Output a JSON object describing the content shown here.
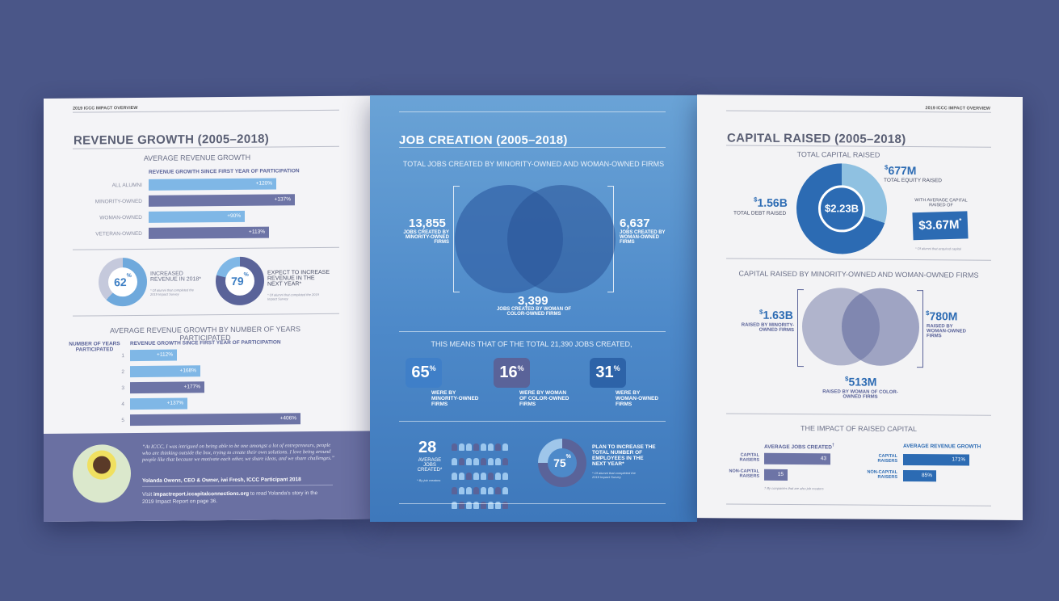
{
  "left": {
    "running_head": "2019 ICCC IMPACT OVERVIEW",
    "title": "REVENUE GROWTH (2005–2018)",
    "avg_title": "AVERAGE REVENUE GROWTH",
    "since_label": "REVENUE GROWTH SINCE FIRST YEAR OF PARTICIPATION",
    "rows": [
      {
        "label": "ALL ALUMNI",
        "value": "+120%",
        "pct": 120,
        "style": "light"
      },
      {
        "label": "MINORITY-OWNED",
        "value": "+137%",
        "pct": 137,
        "style": "dark"
      },
      {
        "label": "WOMAN-OWNED",
        "value": "+90%",
        "pct": 90,
        "style": "light"
      },
      {
        "label": "VETERAN-OWNED",
        "value": "+113%",
        "pct": 113,
        "style": "dark"
      }
    ],
    "donut1": {
      "value": "62",
      "unit": "%",
      "pct": 62,
      "label": "INCREASED REVENUE IN 2018*",
      "note": "* Of alumni that completed the 2019 Impact Survey"
    },
    "donut2": {
      "value": "79",
      "unit": "%",
      "pct": 79,
      "label": "EXPECT TO INCREASE REVENUE IN THE NEXT YEAR*",
      "note": "* Of alumni that completed the 2019 Impact Survey"
    },
    "years_title": "AVERAGE REVENUE GROWTH BY NUMBER OF YEARS PARTICIPATED",
    "years_col": "NUMBER OF YEARS PARTICIPATED",
    "years_since": "REVENUE GROWTH SINCE FIRST YEAR OF PARTICIPATION",
    "years": [
      {
        "n": "1",
        "value": "+112%",
        "pct": 112,
        "style": "light"
      },
      {
        "n": "2",
        "value": "+168%",
        "pct": 168,
        "style": "light"
      },
      {
        "n": "3",
        "value": "+177%",
        "pct": 177,
        "style": "dark"
      },
      {
        "n": "4",
        "value": "+137%",
        "pct": 137,
        "style": "light"
      },
      {
        "n": "5",
        "value": "+406%",
        "pct": 406,
        "style": "dark"
      }
    ],
    "quote": "“At ICCC, I was intrigued on being able to be one amongst a lot of entrepreneurs, people who are thinking outside the box, trying to create their own solutions. I love being around people like that because we motivate each other, we share ideas, and we share challenges.”",
    "quote_author": "Yolanda Owens, CEO & Owner, iwi Fresh, ICCC Participant 2018",
    "visit_prefix": "Visit ",
    "visit_link": "impactreport.iccapitalconnections.org",
    "visit_suffix": " to read Yolanda’s story in the 2019 Impact Report on page 36."
  },
  "middle": {
    "title": "JOB CREATION (2005–2018)",
    "total_title": "TOTAL JOBS CREATED BY MINORITY-OWNED AND WOMAN-OWNED FIRMS",
    "minority": {
      "value": "13,855",
      "label": "JOBS CREATED BY MINORITY-OWNED FIRMS"
    },
    "woman": {
      "value": "6,637",
      "label": "JOBS CREATED BY WOMAN-OWNED FIRMS"
    },
    "overlap": {
      "value": "3,399",
      "label": "JOBS CREATED BY WOMAN OF COLOR-OWNED FIRMS"
    },
    "means_title": "THIS MEANS THAT OF THE TOTAL 21,390 JOBS CREATED,",
    "c1": {
      "value": "65",
      "unit": "%",
      "label": "WERE BY MINORITY-OWNED FIRMS"
    },
    "c2": {
      "value": "16",
      "unit": "%",
      "label": "WERE BY WOMAN OF COLOR-OWNED FIRMS"
    },
    "c3": {
      "value": "31",
      "unit": "%",
      "label": "WERE BY WOMAN-OWNED FIRMS"
    },
    "avg_jobs": {
      "value": "28",
      "label": "AVERAGE JOBS CREATED*",
      "note": "* By job creators"
    },
    "plan": {
      "value": "75",
      "unit": "%",
      "pct": 75,
      "label": "PLAN TO INCREASE THE TOTAL NUMBER OF EMPLOYEES IN THE NEXT YEAR*",
      "note": "* Of alumni that completed the 2019 Impact Survey"
    }
  },
  "right": {
    "running_head": "2019 ICCC IMPACT OVERVIEW",
    "title": "CAPITAL RAISED (2005–2018)",
    "total_title": "TOTAL CAPITAL RAISED",
    "total": "$2.23B",
    "debt": {
      "value": "1.56B",
      "label": "TOTAL DEBT  RAISED"
    },
    "equity": {
      "value": "677M",
      "label": "TOTAL EQUITY RAISED",
      "pct": 30
    },
    "avg_label": "WITH AVERAGE CAPITAL RAISED OF",
    "avg_value": "$3.67M",
    "avg_mark": "*",
    "avg_note": "* Of alumni that acquired capital",
    "mw_title": "CAPITAL RAISED BY MINORITY-OWNED AND WOMAN-OWNED FIRMS",
    "minority": {
      "value": "1.63B",
      "label": "RAISED BY MINORITY-OWNED FIRMS"
    },
    "woman": {
      "value": "780M",
      "label": "RAISED BY WOMAN-OWNED FIRMS"
    },
    "overlap": {
      "value": "513M",
      "label": "RAISED BY WOMAN OF COLOR-OWNED FIRMS"
    },
    "impact_title": "THE IMPACT OF RAISED CAPITAL",
    "jobs_head": "AVERAGE JOBS CREATED",
    "jobs_mark": "†",
    "rev_head": "AVERAGE REVENUE GROWTH",
    "cap_label": "CAPITAL RAISERS",
    "noncap_label": "NON-CAPITAL RAISERS",
    "jobs_cap": "43",
    "jobs_noncap": "15",
    "rev_cap": "171%",
    "rev_noncap": "85%",
    "impact_note": "† By companies that are also job creators"
  }
}
